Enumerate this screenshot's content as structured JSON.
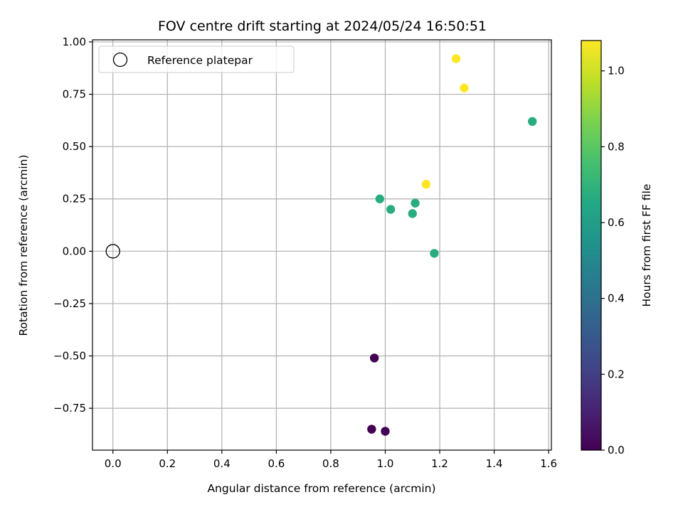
{
  "chart_data": {
    "type": "scatter",
    "title": "FOV centre drift starting at 2024/05/24 16:50:51",
    "xlabel": "Angular distance from reference (arcmin)",
    "ylabel": "Rotation from reference (arcmin)",
    "xlim": [
      -0.075,
      1.61
    ],
    "ylim": [
      -0.95,
      1.01
    ],
    "xticks": [
      "0.0",
      "0.2",
      "0.4",
      "0.6",
      "0.8",
      "1.0",
      "1.2",
      "1.4",
      "1.6"
    ],
    "xtick_values": [
      0,
      0.2,
      0.4,
      0.6,
      0.8,
      1.0,
      1.2,
      1.4,
      1.6
    ],
    "yticks": [
      "1.00",
      "0.75",
      "0.50",
      "0.25",
      "0.00",
      "−0.25",
      "−0.50",
      "−0.75"
    ],
    "ytick_values": [
      1.0,
      0.75,
      0.5,
      0.25,
      0.0,
      -0.25,
      -0.5,
      -0.75
    ],
    "grid": true,
    "reference": {
      "x": 0.0,
      "y": 0.0
    },
    "legend": {
      "placement": "upper-left",
      "label": "Reference platepar"
    },
    "colorbar": {
      "label": "Hours from first FF file",
      "range": [
        0,
        1.08
      ],
      "ticks": [
        "0.0",
        "0.2",
        "0.4",
        "0.6",
        "0.8",
        "1.0"
      ],
      "tick_values": [
        0,
        0.2,
        0.4,
        0.6,
        0.8,
        1.0
      ],
      "colormap": "viridis"
    },
    "points": [
      {
        "x": 0.96,
        "y": -0.51,
        "hours": 0.0
      },
      {
        "x": 0.95,
        "y": -0.85,
        "hours": 0.0
      },
      {
        "x": 1.0,
        "y": -0.86,
        "hours": 0.0
      },
      {
        "x": 0.98,
        "y": 0.25,
        "hours": 0.67
      },
      {
        "x": 1.02,
        "y": 0.2,
        "hours": 0.67
      },
      {
        "x": 1.1,
        "y": 0.18,
        "hours": 0.67
      },
      {
        "x": 1.11,
        "y": 0.23,
        "hours": 0.67
      },
      {
        "x": 1.18,
        "y": -0.01,
        "hours": 0.67
      },
      {
        "x": 1.54,
        "y": 0.62,
        "hours": 0.67
      },
      {
        "x": 1.15,
        "y": 0.32,
        "hours": 1.08
      },
      {
        "x": 1.26,
        "y": 0.92,
        "hours": 1.08
      },
      {
        "x": 1.29,
        "y": 0.78,
        "hours": 1.08
      }
    ]
  }
}
